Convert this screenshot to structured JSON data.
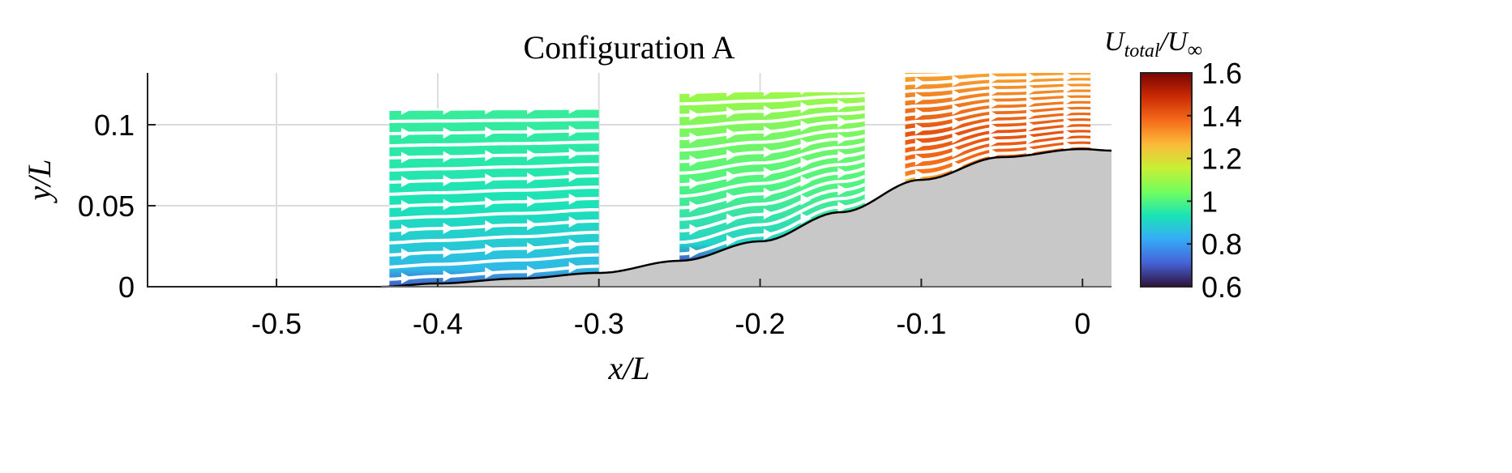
{
  "chart_data": {
    "type": "heatmap",
    "subtype": "streamline-contour",
    "title": "Configuration A",
    "xlabel": "x/L",
    "ylabel": "y/L",
    "xlim": [
      -0.58,
      0.018
    ],
    "ylim": [
      0,
      0.132
    ],
    "xticks": [
      -0.5,
      -0.4,
      -0.3,
      -0.2,
      -0.1,
      0
    ],
    "xtick_labels": [
      "-0.5",
      "-0.4",
      "-0.3",
      "-0.2",
      "-0.1",
      "0"
    ],
    "yticks": [
      0,
      0.05,
      0.1
    ],
    "ytick_labels": [
      "0",
      "0.05",
      "0.1"
    ],
    "grid": true,
    "colorbar": {
      "label_main": "U",
      "label_sub": "total",
      "label_sep": "/U",
      "label_sub2": "∞",
      "range": [
        0.6,
        1.6
      ],
      "ticks": [
        0.6,
        0.8,
        1,
        1.2,
        1.4,
        1.6
      ],
      "tick_labels": [
        "0.6",
        "0.8",
        "1",
        "1.2",
        "1.4",
        "1.6"
      ],
      "colormap": "turbo",
      "stops": [
        "#30123b",
        "#4662d7",
        "#36aaf9",
        "#1ae4b6",
        "#72fe5e",
        "#c8ef34",
        "#faba39",
        "#f66b19",
        "#ca2a04",
        "#7a0403"
      ]
    },
    "surface_profile": {
      "fill": "#c8c8c8",
      "x": [
        -0.58,
        -0.435,
        -0.4,
        -0.35,
        -0.3,
        -0.25,
        -0.2,
        -0.15,
        -0.1,
        -0.05,
        0,
        0.018
      ],
      "y": [
        0,
        0,
        0.002,
        0.005,
        0.0085,
        0.016,
        0.028,
        0.046,
        0.066,
        0.08,
        0.085,
        0.084
      ]
    },
    "measurement_windows": [
      {
        "x_range": [
          -0.43,
          -0.3
        ],
        "y_top": 0.11,
        "speed_top": 0.97,
        "speed_mid": 0.93,
        "speed_wall": 0.7
      },
      {
        "x_range": [
          -0.25,
          -0.135
        ],
        "y_top": 0.12,
        "speed_top": 1.1,
        "speed_mid": 1.0,
        "speed_wall": 0.7
      },
      {
        "x_range": [
          -0.11,
          0.005
        ],
        "y_top": 0.132,
        "speed_top": 1.3,
        "speed_mid": 1.42,
        "speed_wall": 1.25
      }
    ]
  }
}
